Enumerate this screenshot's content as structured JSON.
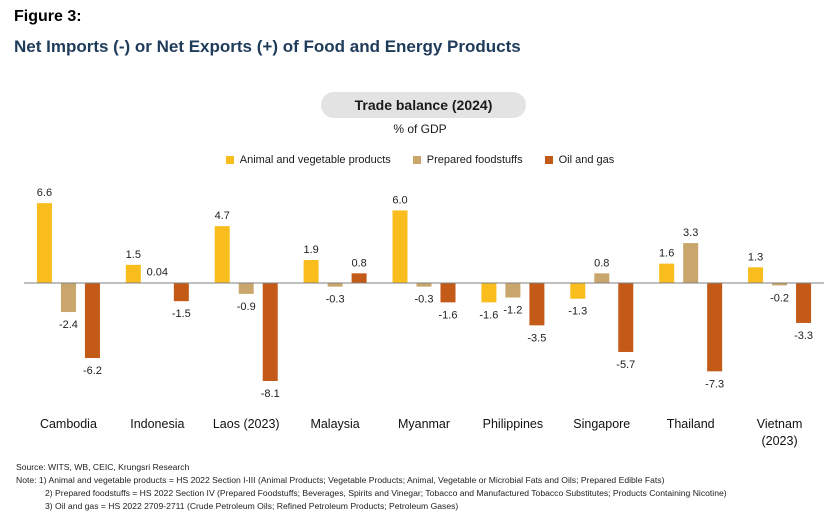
{
  "figure_label": "Figure 3:",
  "figure_title": "Net Imports (-) or Net Exports (+) of Food and Energy Products",
  "colors": {
    "animal": "#f9bd1e",
    "prepared": "#c9a66b",
    "oil": "#c45a17",
    "axis": "#7f7f7f",
    "title": "#1f3b5a"
  },
  "chart_data": {
    "type": "bar",
    "title": "Trade balance (2024)",
    "ylabel": "% of GDP",
    "legend_position": "top",
    "grid": false,
    "ylim": [
      -8.1,
      6.6
    ],
    "categories": [
      "Cambodia",
      "Indonesia",
      "Laos (2023)",
      "Malaysia",
      "Myanmar",
      "Philippines",
      "Singapore",
      "Thailand",
      "Vietnam\n(2023)"
    ],
    "series": [
      {
        "name": "Animal and vegetable products",
        "color_key": "animal",
        "values": [
          6.6,
          1.5,
          4.7,
          1.9,
          6.0,
          -1.6,
          -1.3,
          1.6,
          1.3
        ],
        "labels": [
          "6.6",
          "1.5",
          "4.7",
          "1.9",
          "6.0",
          "-1.6",
          "-1.3",
          "1.6",
          "1.3"
        ]
      },
      {
        "name": "Prepared foodstuffs",
        "color_key": "prepared",
        "values": [
          -2.4,
          0.04,
          -0.9,
          -0.3,
          -0.3,
          -1.2,
          0.8,
          3.3,
          -0.2
        ],
        "labels": [
          "-2.4",
          "0.04",
          "-0.9",
          "-0.3",
          "-0.3",
          "-1.2",
          "0.8",
          "3.3",
          "-0.2"
        ]
      },
      {
        "name": "Oil and gas",
        "color_key": "oil",
        "values": [
          -6.2,
          -1.5,
          -8.1,
          0.8,
          -1.6,
          -3.5,
          -5.7,
          -7.3,
          -3.3
        ],
        "labels": [
          "-6.2",
          "-1.5",
          "-8.1",
          "0.8",
          "-1.6",
          "-3.5",
          "-5.7",
          "-7.3",
          "-3.3"
        ]
      }
    ]
  },
  "notes": {
    "source": "Source: WITS, WB, CEIC, Krungsri Research",
    "note1": "Note: 1) Animal and vegetable products = HS 2022 Section I-III (Animal Products; Vegetable Products; Animal, Vegetable or Microbial Fats and Oils; Prepared Edible Fats)",
    "note2": "2) Prepared foodstuffs = HS 2022 Section IV (Prepared Foodstuffs; Beverages, Spirits and Vinegar; Tobacco and Manufactured Tobacco Substitutes; Products Containing Nicotine)",
    "note3": "3) Oil and gas = HS 2022 2709-2711 (Crude Petroleum Oils; Refined Petroleum Products; Petroleum Gases)"
  }
}
